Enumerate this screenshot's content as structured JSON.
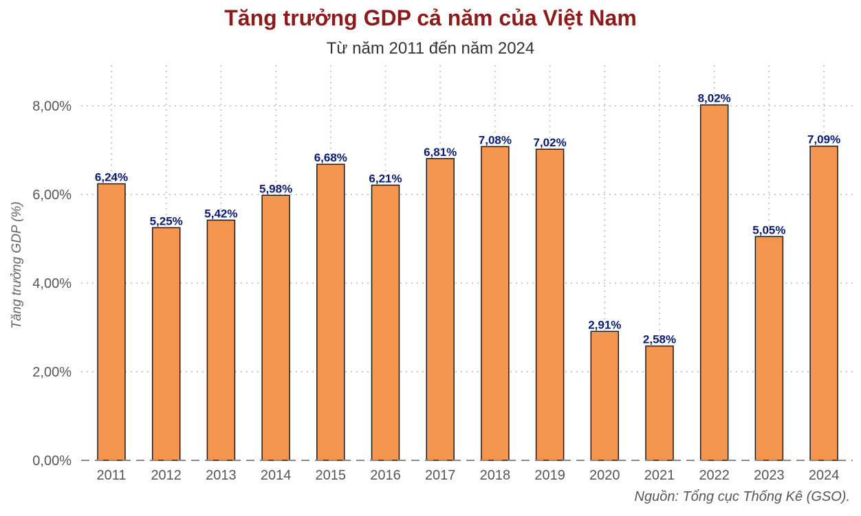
{
  "title": "Tăng trưởng GDP cả năm của Việt Nam",
  "subtitle": "Từ năm 2011 đến năm 2024",
  "source": "Nguồn: Tổng cục Thống Kê (GSO).",
  "chart_data": {
    "type": "bar",
    "title": "Tăng trưởng GDP cả năm của Việt Nam",
    "subtitle": "Từ năm 2011 đến năm 2024",
    "xlabel": "",
    "ylabel": "Tăng trưởng GDP (%)",
    "categories": [
      "2011",
      "2012",
      "2013",
      "2014",
      "2015",
      "2016",
      "2017",
      "2018",
      "2019",
      "2020",
      "2021",
      "2022",
      "2023",
      "2024"
    ],
    "values": [
      6.24,
      5.25,
      5.42,
      5.98,
      6.68,
      6.21,
      6.81,
      7.08,
      7.02,
      2.91,
      2.58,
      8.02,
      5.05,
      7.09
    ],
    "value_labels": [
      "6,24%",
      "5,25%",
      "5,42%",
      "5,98%",
      "6,68%",
      "6,21%",
      "6,81%",
      "7,08%",
      "7,02%",
      "2,91%",
      "2,58%",
      "8,02%",
      "5,05%",
      "7,09%"
    ],
    "yticks": [
      0,
      2,
      4,
      6,
      8
    ],
    "ytick_labels": [
      "0,00%",
      "2,00%",
      "4,00%",
      "6,00%",
      "8,00%"
    ],
    "ylim": [
      0,
      8.4
    ],
    "grid": true,
    "legend": "none",
    "colors": {
      "bar_fill": "#f4964f",
      "bar_stroke": "#1a1a1a",
      "value_label": "#0a1a6e",
      "title": "#8b1a1a",
      "grid": "#c8c8c8"
    }
  }
}
